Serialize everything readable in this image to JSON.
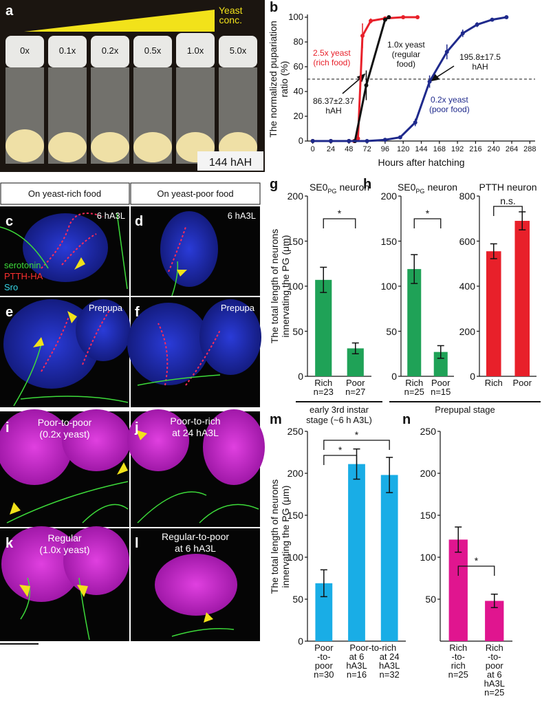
{
  "photos": {
    "a": {
      "letter": "a",
      "yeast_label": "Yeast\nconc.",
      "concentrations": [
        "0x",
        "0.1x",
        "0.2x",
        "0.5x",
        "1.0x",
        "5.0x"
      ],
      "time": "144 hAH"
    },
    "headers": [
      "On yeast-rich food",
      "On yeast-poor food"
    ],
    "c": {
      "letter": "c",
      "stage": "6 hA3L",
      "stains": [
        "serotonin",
        "PTTH-HA",
        "Sro"
      ]
    },
    "d": {
      "letter": "d",
      "stage": "6 hA3L"
    },
    "e": {
      "letter": "e",
      "stage": "Prepupa"
    },
    "f": {
      "letter": "f",
      "stage": "Prepupa"
    },
    "i": {
      "letter": "i",
      "condition": "Poor-to-poor\n(0.2x yeast)"
    },
    "j": {
      "letter": "j",
      "condition": "Poor-to-rich\nat 24 hA3L"
    },
    "k": {
      "letter": "k",
      "condition": "Regular\n(1.0x yeast)"
    },
    "l": {
      "letter": "l",
      "condition": "Regular-to-poor\nat 6 hA3L"
    }
  },
  "chart_data": [
    {
      "type": "line",
      "letter": "b",
      "xlabel": "Hours after hatching",
      "ylabel": "The normalized pupariation\nratio (%)",
      "xlim": [
        -7,
        295
      ],
      "xticks": [
        0,
        24,
        48,
        72,
        96,
        120,
        144,
        168,
        192,
        216,
        240,
        264,
        288
      ],
      "ylim": [
        0,
        100
      ],
      "yticks": [
        0,
        20,
        40,
        60,
        80,
        100
      ],
      "reference_line": 50,
      "series": [
        {
          "name": "2.5x yeast\n(rich food)",
          "color": "#e8202a",
          "x": [
            0,
            24,
            48,
            55,
            60,
            66,
            77,
            96,
            120,
            139
          ],
          "values": [
            0,
            0,
            0,
            0,
            2,
            85,
            97,
            99,
            100,
            100
          ],
          "errors": [
            0,
            0,
            0,
            0,
            0,
            10,
            2,
            1,
            0,
            0
          ]
        },
        {
          "name": "1.0x yeast\n(regular\nfood)",
          "color": "#111111",
          "x": [
            0,
            24,
            48,
            56,
            71,
            96,
            101
          ],
          "values": [
            0,
            0,
            0,
            0,
            45,
            98,
            100
          ],
          "errors": [
            0,
            0,
            0,
            0,
            12,
            0,
            0
          ]
        },
        {
          "name": "0.2x yeast\n(poor food)",
          "color": "#1f2a8c",
          "x": [
            0,
            24,
            48,
            72,
            96,
            116,
            136,
            155,
            178,
            199,
            218,
            238,
            257
          ],
          "values": [
            0,
            0,
            0,
            0,
            1,
            3,
            15,
            48,
            72,
            87,
            94,
            98,
            100
          ],
          "errors": [
            0,
            0,
            0,
            0,
            0,
            1,
            3,
            5,
            6,
            3,
            2,
            1,
            0
          ]
        }
      ],
      "annotations": [
        "86.37±2.37\nhAH",
        "195.8±17.5\nhAH"
      ]
    },
    {
      "type": "bar",
      "letter": "g",
      "title": {
        "main": "SE0",
        "sub": "PG",
        "rest": "neuron"
      },
      "ylabel": "The total length of neurons\ninnervating the PG (μm)",
      "categories": [
        "Rich",
        "Poor"
      ],
      "n_labels": [
        "n=23",
        "n=27"
      ],
      "values": [
        107,
        31
      ],
      "errors": [
        14,
        6
      ],
      "color": "#1fa257",
      "ylim": [
        0,
        200
      ],
      "yticks": [
        0,
        50,
        100,
        150,
        200
      ],
      "significance": [
        {
          "bars": [
            0,
            1
          ],
          "label": "*"
        }
      ],
      "stage": "early 3rd instar\nstage (~6 h A3L)"
    },
    {
      "type": "bar",
      "letter": "h",
      "title": {
        "main": "SE0",
        "sub": "PG",
        "rest": "neuron"
      },
      "categories": [
        "Rich",
        "Poor"
      ],
      "n_labels": [
        "n=25",
        "n=15"
      ],
      "values": [
        119,
        27
      ],
      "errors": [
        16,
        7
      ],
      "color": "#1fa257",
      "ylim": [
        0,
        200
      ],
      "yticks": [
        0,
        50,
        100,
        150,
        200
      ],
      "significance": [
        {
          "bars": [
            0,
            1
          ],
          "label": "*"
        }
      ],
      "stage": "Prepupal stage"
    },
    {
      "type": "bar",
      "title": {
        "main": "PTTH neuron"
      },
      "categories": [
        "Rich",
        "Poor"
      ],
      "values": [
        555,
        690
      ],
      "errors": [
        33,
        40
      ],
      "color": "#e8202a",
      "ylim": [
        0,
        800
      ],
      "yticks": [
        0,
        200,
        400,
        600,
        800
      ],
      "significance": [
        {
          "bars": [
            0,
            1
          ],
          "label": "n.s."
        }
      ]
    },
    {
      "type": "bar",
      "letter": "m",
      "ylabel": "The total length of neurons\ninnervating the PG (μm)",
      "categories": [
        "Poor\n-to-\npoor",
        "at 6\nhA3L",
        "at 24\nhA3L"
      ],
      "n_labels": [
        "n=30",
        "n=16",
        "n=32"
      ],
      "group": {
        "label": "Poor-to-rich",
        "bars": [
          1,
          2
        ]
      },
      "values": [
        69,
        211,
        198
      ],
      "errors": [
        16,
        18,
        21
      ],
      "color": "#19ade6",
      "ylim": [
        0,
        250
      ],
      "yticks": [
        0,
        50,
        100,
        150,
        200,
        250
      ],
      "significance": [
        {
          "bars": [
            0,
            1
          ],
          "label": "*"
        },
        {
          "bars": [
            0,
            2
          ],
          "label": "*"
        }
      ]
    },
    {
      "type": "bar",
      "letter": "n",
      "categories": [
        "Rich\n-to-\nrich",
        "Rich\n-to-\npoor\nat 6\nhA3L"
      ],
      "n_labels": [
        "n=25",
        "n=25"
      ],
      "values": [
        121,
        48
      ],
      "errors": [
        15,
        8
      ],
      "color": "#e0158f",
      "ylim": [
        0,
        250
      ],
      "yticks": [
        50,
        100,
        150,
        200,
        250
      ],
      "significance": [
        {
          "bars": [
            0,
            1
          ],
          "label": "*"
        }
      ]
    }
  ]
}
